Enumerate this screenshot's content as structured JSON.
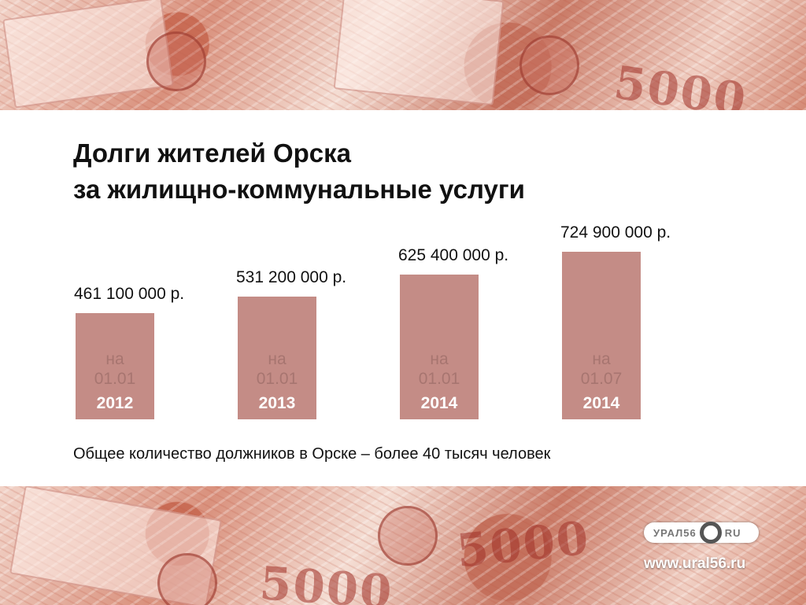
{
  "chart_data": {
    "type": "bar",
    "title": [
      "Долги жителей Орска",
      "за жилищно-коммунальные услуги"
    ],
    "categories": [
      {
        "na": "на",
        "date": "01.01",
        "year": "2012"
      },
      {
        "na": "на",
        "date": "01.01",
        "year": "2013"
      },
      {
        "na": "на",
        "date": "01.01",
        "year": "2014"
      },
      {
        "na": "на",
        "date": "01.07",
        "year": "2014"
      }
    ],
    "values": [
      461100000,
      531200000,
      625400000,
      724900000
    ],
    "value_labels": [
      "461 100 000 р.",
      "531 200 000 р.",
      "625 400 000 р.",
      "724 900 000 р."
    ],
    "bar_color": "#c48c86",
    "grid": false,
    "legend": "none"
  },
  "footnote": "Общее количество должников в Орске – более 40 тысяч человек",
  "logo": {
    "left": "УРАЛ56",
    "right": "RU"
  },
  "site": "www.ural56.ru"
}
